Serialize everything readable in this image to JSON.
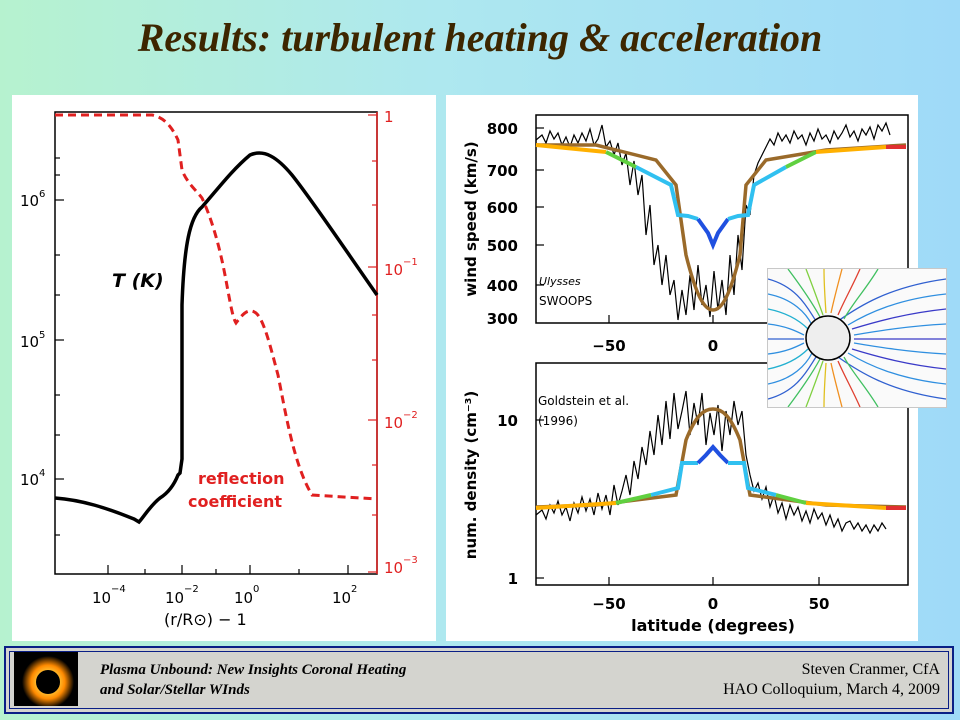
{
  "title": "Results:  turbulent heating & acceleration",
  "left_plot": {
    "left_axis_ticks": [
      "10",
      "10",
      "10"
    ],
    "left_axis_exps": [
      "6",
      "5",
      "4"
    ],
    "right_axis_ticks": [
      "1",
      "10",
      "10",
      "10"
    ],
    "right_axis_exps": [
      "",
      "−1",
      "−2",
      "−3"
    ],
    "x_ticks": [
      "10",
      "10",
      "10",
      "10"
    ],
    "x_exps": [
      "−4",
      "−2",
      "0",
      "2"
    ],
    "x_label": "(r/R⊙) − 1",
    "curve_label": "T  (K)",
    "reflection_label_1": "reflection",
    "reflection_label_2": "coefficient",
    "colors": {
      "temperature": "#000000",
      "reflection": "#e02020"
    }
  },
  "top_plot": {
    "y_label": "wind speed (km/s)",
    "y_ticks": [
      "800",
      "700",
      "600",
      "500",
      "400",
      "300"
    ],
    "x_ticks": [
      "−50",
      "0"
    ],
    "annotation_1": "Ulysses",
    "annotation_2": "SWOOPS"
  },
  "bottom_plot": {
    "y_label": "num. density (cm⁻³)",
    "y_ticks": [
      "10",
      "1"
    ],
    "x_ticks": [
      "−50",
      "0",
      "50"
    ],
    "x_label": "latitude (degrees)",
    "annotation_1": "Goldstein et al.",
    "annotation_2": "(1996)",
    "colors": {
      "model": "#9a6a2a",
      "observations": "#000000"
    }
  },
  "footer": {
    "left_line_1": "Plasma Unbound:  New Insights Coronal Heating",
    "left_line_2": "and Solar/Stellar WInds",
    "right_line_1": "Steven Cranmer,  CfA",
    "right_line_2": "HAO Colloquium, March 4, 2009"
  }
}
